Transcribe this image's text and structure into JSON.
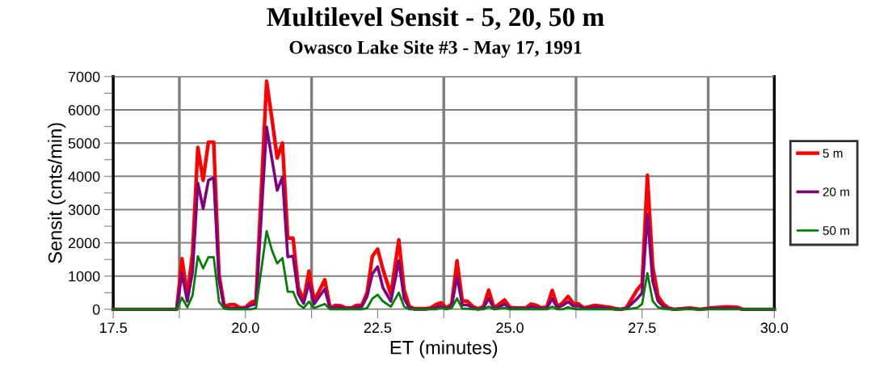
{
  "chart_data": {
    "type": "line",
    "title": "Multilevel Sensit - 5, 20, 50 m",
    "subtitle": "Owasco Lake Site #3 - May 17, 1991",
    "xlabel": "ET (minutes)",
    "ylabel": "Sensit (cnts/min)",
    "x": [
      17.5,
      18.7,
      18.8,
      18.9,
      19.0,
      19.1,
      19.2,
      19.3,
      19.4,
      19.5,
      19.6,
      19.7,
      19.8,
      19.9,
      20.0,
      20.1,
      20.2,
      20.4,
      20.5,
      20.6,
      20.7,
      20.8,
      20.9,
      21.0,
      21.1,
      21.2,
      21.3,
      21.4,
      21.5,
      21.6,
      21.7,
      21.8,
      21.9,
      22.0,
      22.1,
      22.2,
      22.3,
      22.4,
      22.5,
      22.6,
      22.75,
      22.9,
      23.0,
      23.1,
      23.2,
      23.3,
      23.4,
      23.5,
      23.6,
      23.7,
      23.8,
      23.9,
      24.0,
      24.1,
      24.2,
      24.3,
      24.4,
      24.5,
      24.6,
      24.7,
      24.8,
      24.9,
      25.0,
      25.1,
      25.2,
      25.3,
      25.4,
      25.5,
      25.6,
      25.7,
      25.8,
      25.9,
      26.0,
      26.1,
      26.2,
      26.3,
      26.4,
      26.5,
      26.6,
      26.7,
      26.8,
      26.9,
      27.0,
      27.1,
      27.2,
      27.4,
      27.5,
      27.6,
      27.7,
      27.8,
      27.9,
      28.0,
      28.1,
      28.4,
      28.6,
      28.8,
      29.1,
      29.3,
      29.4,
      30.0
    ],
    "series": [
      {
        "name": "5 m",
        "color": "#ff0000",
        "values": [
          0,
          0,
          1520,
          400,
          1700,
          4870,
          3880,
          5030,
          5030,
          1050,
          80,
          140,
          140,
          40,
          60,
          200,
          270,
          6860,
          5740,
          4550,
          5000,
          2140,
          2140,
          650,
          260,
          1150,
          260,
          570,
          890,
          40,
          120,
          110,
          40,
          40,
          120,
          120,
          500,
          1600,
          1810,
          1200,
          450,
          2090,
          580,
          80,
          20,
          20,
          20,
          40,
          140,
          200,
          40,
          160,
          1460,
          260,
          240,
          80,
          20,
          80,
          580,
          40,
          160,
          280,
          60,
          40,
          40,
          40,
          160,
          120,
          40,
          80,
          570,
          80,
          200,
          390,
          180,
          160,
          40,
          80,
          120,
          100,
          80,
          60,
          20,
          0,
          40,
          570,
          770,
          4030,
          1290,
          400,
          160,
          40,
          0,
          40,
          0,
          40,
          80,
          60,
          0,
          0
        ]
      },
      {
        "name": "20 m",
        "color": "#800080",
        "values": [
          0,
          0,
          1090,
          240,
          1130,
          3800,
          3030,
          3880,
          3960,
          890,
          40,
          40,
          40,
          20,
          40,
          120,
          160,
          5490,
          4530,
          3580,
          3980,
          1580,
          1600,
          450,
          180,
          790,
          160,
          390,
          610,
          20,
          60,
          60,
          20,
          20,
          60,
          80,
          390,
          1070,
          1280,
          650,
          240,
          1460,
          320,
          40,
          0,
          0,
          0,
          20,
          50,
          100,
          20,
          100,
          990,
          130,
          130,
          40,
          0,
          40,
          330,
          20,
          80,
          160,
          20,
          20,
          20,
          20,
          80,
          60,
          20,
          40,
          320,
          40,
          120,
          230,
          100,
          100,
          20,
          40,
          60,
          60,
          40,
          20,
          0,
          0,
          20,
          310,
          490,
          2860,
          850,
          250,
          80,
          20,
          0,
          20,
          0,
          20,
          40,
          20,
          0,
          0
        ]
      },
      {
        "name": "50 m",
        "color": "#008000",
        "values": [
          0,
          0,
          350,
          60,
          420,
          1600,
          1230,
          1570,
          1570,
          230,
          20,
          0,
          0,
          0,
          0,
          0,
          40,
          2350,
          1780,
          1380,
          1540,
          530,
          530,
          160,
          40,
          230,
          40,
          100,
          160,
          0,
          0,
          0,
          0,
          0,
          0,
          0,
          40,
          320,
          440,
          240,
          80,
          500,
          80,
          0,
          0,
          0,
          0,
          0,
          0,
          40,
          0,
          40,
          330,
          20,
          20,
          0,
          0,
          0,
          80,
          0,
          20,
          40,
          0,
          0,
          0,
          0,
          0,
          0,
          0,
          0,
          80,
          0,
          0,
          60,
          20,
          0,
          0,
          0,
          0,
          0,
          0,
          0,
          0,
          0,
          0,
          40,
          160,
          1090,
          250,
          60,
          20,
          0,
          0,
          0,
          0,
          0,
          0,
          0,
          0,
          0
        ]
      }
    ],
    "xlim": [
      17.5,
      30.0
    ],
    "xticks": [
      {
        "value": 17.5,
        "label": "17.5"
      },
      {
        "value": 18.75,
        "label": null
      },
      {
        "value": 20.0,
        "label": "20.0"
      },
      {
        "value": 21.25,
        "label": null
      },
      {
        "value": 22.5,
        "label": "22.5"
      },
      {
        "value": 23.75,
        "label": null
      },
      {
        "value": 25.0,
        "label": "25.0"
      },
      {
        "value": 26.25,
        "label": null
      },
      {
        "value": 27.5,
        "label": "27.5"
      },
      {
        "value": 28.75,
        "label": null
      },
      {
        "value": 30.0,
        "label": "30.0"
      }
    ],
    "ylim": [
      0,
      7000
    ],
    "yticks": [
      0,
      {
        "value": 500,
        "label": null
      },
      1000,
      {
        "value": 1500,
        "label": null
      },
      2000,
      {
        "value": 2500,
        "label": null
      },
      3000,
      {
        "value": 3500,
        "label": null
      },
      4000,
      {
        "value": 4500,
        "label": null
      },
      5000,
      {
        "value": 5500,
        "label": null
      },
      6000,
      {
        "value": 6500,
        "label": null
      },
      7000
    ],
    "grid": "y",
    "ref_lines": [
      {
        "axis": "x",
        "value": 18.75,
        "color": "#808080"
      },
      {
        "axis": "x",
        "value": 21.25,
        "color": "#808080"
      },
      {
        "axis": "x",
        "value": 23.75,
        "color": "#808080"
      },
      {
        "axis": "x",
        "value": 26.25,
        "color": "#808080"
      },
      {
        "axis": "x",
        "value": 28.75,
        "color": "#808080"
      }
    ],
    "legend": "right",
    "marker": "none",
    "line_style": "solid"
  }
}
